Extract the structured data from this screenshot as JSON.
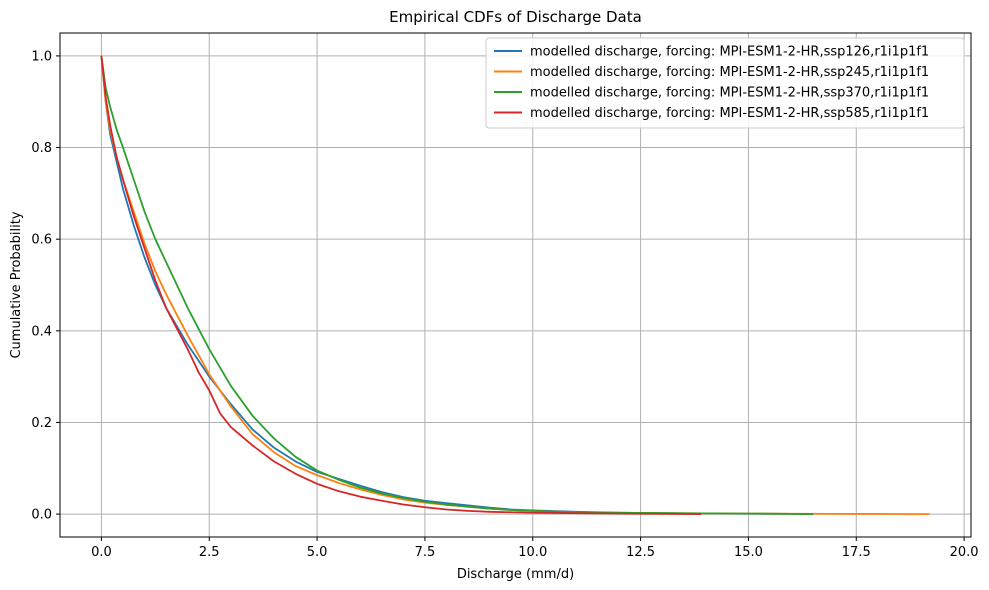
{
  "chart_data": {
    "type": "line",
    "title": "Empirical CDFs of Discharge Data",
    "xlabel": "Discharge (mm/d)",
    "ylabel": "Cumulative Probability",
    "xlim": [
      -0.96,
      20.16
    ],
    "ylim": [
      -0.05,
      1.05
    ],
    "xticks": [
      0,
      2.5,
      5,
      7.5,
      10,
      12.5,
      15,
      17.5,
      20
    ],
    "xtick_labels": [
      "0.0",
      "2.5",
      "5.0",
      "7.5",
      "10.0",
      "12.5",
      "15.0",
      "17.5",
      "20.0"
    ],
    "yticks": [
      0,
      0.2,
      0.4,
      0.6,
      0.8,
      1.0
    ],
    "ytick_labels": [
      "0.0",
      "0.2",
      "0.4",
      "0.6",
      "0.8",
      "1.0"
    ],
    "grid": true,
    "legend_position": "top-right",
    "series": [
      {
        "name": "modelled discharge, forcing: MPI-ESM1-2-HR,ssp126,r1i1p1f1",
        "color": "#1f77b4",
        "points": [
          [
            0,
            1.0
          ],
          [
            0.1,
            0.9
          ],
          [
            0.2,
            0.83
          ],
          [
            0.35,
            0.77
          ],
          [
            0.5,
            0.71
          ],
          [
            0.75,
            0.63
          ],
          [
            1.0,
            0.56
          ],
          [
            1.25,
            0.5
          ],
          [
            1.5,
            0.45
          ],
          [
            2.0,
            0.37
          ],
          [
            2.5,
            0.3
          ],
          [
            3.0,
            0.24
          ],
          [
            3.5,
            0.185
          ],
          [
            4.0,
            0.145
          ],
          [
            4.5,
            0.115
          ],
          [
            5.0,
            0.092
          ],
          [
            5.5,
            0.077
          ],
          [
            6.0,
            0.062
          ],
          [
            6.5,
            0.048
          ],
          [
            7.0,
            0.037
          ],
          [
            7.5,
            0.029
          ],
          [
            8.0,
            0.024
          ],
          [
            8.5,
            0.019
          ],
          [
            9.0,
            0.014
          ],
          [
            9.5,
            0.01
          ],
          [
            10.0,
            0.008
          ],
          [
            11.0,
            0.005
          ],
          [
            12.0,
            0.003
          ],
          [
            13.0,
            0.002
          ],
          [
            14.0,
            0.001
          ],
          [
            15.0,
            0.0008
          ],
          [
            16.0,
            0.0004
          ],
          [
            16.5,
            0.0
          ]
        ]
      },
      {
        "name": "modelled discharge, forcing: MPI-ESM1-2-HR,ssp245,r1i1p1f1",
        "color": "#ff7f0e",
        "points": [
          [
            0,
            1.0
          ],
          [
            0.1,
            0.9
          ],
          [
            0.2,
            0.84
          ],
          [
            0.35,
            0.78
          ],
          [
            0.5,
            0.73
          ],
          [
            0.75,
            0.66
          ],
          [
            1.0,
            0.59
          ],
          [
            1.25,
            0.53
          ],
          [
            1.5,
            0.48
          ],
          [
            2.0,
            0.39
          ],
          [
            2.5,
            0.305
          ],
          [
            3.0,
            0.235
          ],
          [
            3.5,
            0.175
          ],
          [
            4.0,
            0.135
          ],
          [
            4.5,
            0.105
          ],
          [
            5.0,
            0.085
          ],
          [
            5.5,
            0.068
          ],
          [
            6.0,
            0.054
          ],
          [
            6.5,
            0.042
          ],
          [
            7.0,
            0.032
          ],
          [
            7.5,
            0.025
          ],
          [
            8.0,
            0.02
          ],
          [
            8.5,
            0.016
          ],
          [
            9.0,
            0.012
          ],
          [
            9.5,
            0.009
          ],
          [
            10.0,
            0.007
          ],
          [
            11.0,
            0.004
          ],
          [
            12.0,
            0.003
          ],
          [
            13.0,
            0.002
          ],
          [
            14.0,
            0.0015
          ],
          [
            15.0,
            0.001
          ],
          [
            16.0,
            0.0007
          ],
          [
            17.0,
            0.0005
          ],
          [
            18.0,
            0.0003
          ],
          [
            19.2,
            0.0
          ]
        ]
      },
      {
        "name": "modelled discharge, forcing: MPI-ESM1-2-HR,ssp370,r1i1p1f1",
        "color": "#2ca02c",
        "points": [
          [
            0,
            1.0
          ],
          [
            0.1,
            0.93
          ],
          [
            0.2,
            0.89
          ],
          [
            0.35,
            0.84
          ],
          [
            0.5,
            0.8
          ],
          [
            0.75,
            0.73
          ],
          [
            1.0,
            0.66
          ],
          [
            1.25,
            0.6
          ],
          [
            1.5,
            0.55
          ],
          [
            2.0,
            0.45
          ],
          [
            2.5,
            0.36
          ],
          [
            3.0,
            0.28
          ],
          [
            3.5,
            0.215
          ],
          [
            4.0,
            0.165
          ],
          [
            4.5,
            0.125
          ],
          [
            5.0,
            0.095
          ],
          [
            5.5,
            0.075
          ],
          [
            6.0,
            0.058
          ],
          [
            6.5,
            0.045
          ],
          [
            7.0,
            0.035
          ],
          [
            7.5,
            0.027
          ],
          [
            8.0,
            0.021
          ],
          [
            8.5,
            0.016
          ],
          [
            9.0,
            0.012
          ],
          [
            9.5,
            0.009
          ],
          [
            10.0,
            0.007
          ],
          [
            11.0,
            0.004
          ],
          [
            12.0,
            0.003
          ],
          [
            13.0,
            0.002
          ],
          [
            14.0,
            0.0015
          ],
          [
            15.0,
            0.001
          ],
          [
            16.0,
            0.0005
          ],
          [
            16.5,
            0.0
          ]
        ]
      },
      {
        "name": "modelled discharge, forcing: MPI-ESM1-2-HR,ssp585,r1i1p1f1",
        "color": "#d62728",
        "points": [
          [
            0,
            1.0
          ],
          [
            0.1,
            0.91
          ],
          [
            0.2,
            0.85
          ],
          [
            0.35,
            0.78
          ],
          [
            0.5,
            0.73
          ],
          [
            0.75,
            0.65
          ],
          [
            1.0,
            0.58
          ],
          [
            1.25,
            0.51
          ],
          [
            1.5,
            0.45
          ],
          [
            2.0,
            0.36
          ],
          [
            2.25,
            0.31
          ],
          [
            2.5,
            0.27
          ],
          [
            2.75,
            0.22
          ],
          [
            3.0,
            0.19
          ],
          [
            3.5,
            0.15
          ],
          [
            4.0,
            0.115
          ],
          [
            4.5,
            0.088
          ],
          [
            5.0,
            0.066
          ],
          [
            5.5,
            0.05
          ],
          [
            6.0,
            0.038
          ],
          [
            6.5,
            0.029
          ],
          [
            7.0,
            0.021
          ],
          [
            7.5,
            0.015
          ],
          [
            8.0,
            0.01
          ],
          [
            8.5,
            0.007
          ],
          [
            9.0,
            0.005
          ],
          [
            9.5,
            0.004
          ],
          [
            10.0,
            0.003
          ],
          [
            11.0,
            0.002
          ],
          [
            12.0,
            0.001
          ],
          [
            13.0,
            0.0005
          ],
          [
            13.9,
            0.0
          ]
        ]
      }
    ]
  }
}
